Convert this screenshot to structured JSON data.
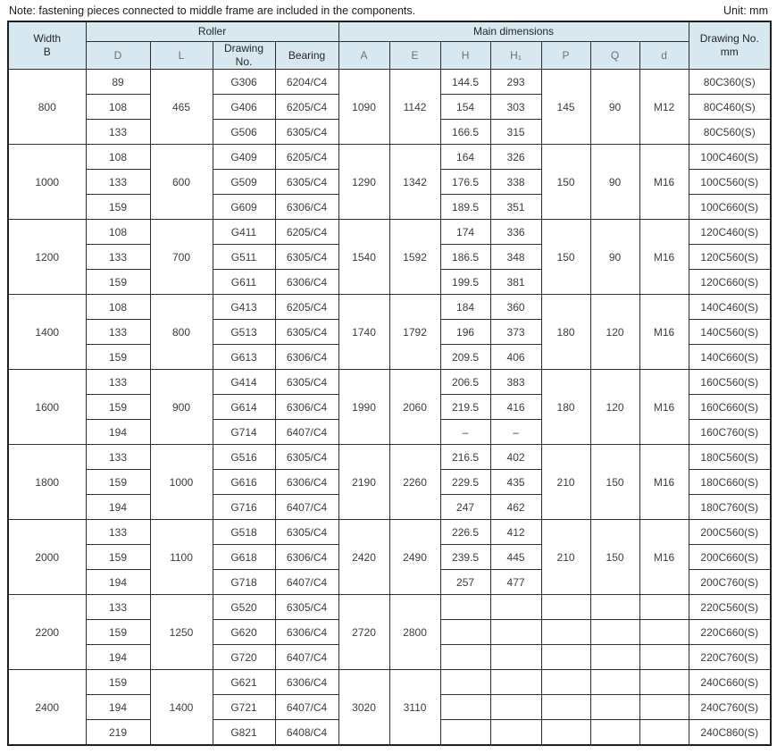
{
  "note": "Note: fastening pieces connected to middle frame are included in the components.",
  "unit_label": "Unit: mm",
  "colors": {
    "header_bg": "#d7e8f0",
    "border": "#2d2d2d",
    "text": "#3d3d3d"
  },
  "table": {
    "headers": {
      "width_b": "Width\nB",
      "roller": "Roller",
      "main_dimensions": "Main dimensions",
      "drawing_no_mm": "Drawing No.\nmm",
      "sub": {
        "d": "D",
        "l": "L",
        "drawing": "Drawing\nNo.",
        "bearing": "Bearing",
        "a": "A",
        "e": "E",
        "h": "H",
        "h1": "H₁",
        "p": "P",
        "q": "Q",
        "d_thread": "d"
      }
    },
    "groups": [
      {
        "b": "800",
        "l": "465",
        "a": "1090",
        "e": "1142",
        "p": "145",
        "q": "90",
        "d_thread": "M12",
        "pqd_merged": true,
        "rows": [
          {
            "d": "89",
            "drawing": "G306",
            "bearing": "6204/C4",
            "h": "144.5",
            "h1": "293",
            "drawing_mm": "80C360(S)"
          },
          {
            "d": "108",
            "drawing": "G406",
            "bearing": "6205/C4",
            "h": "154",
            "h1": "303",
            "drawing_mm": "80C460(S)"
          },
          {
            "d": "133",
            "drawing": "G506",
            "bearing": "6305/C4",
            "h": "166.5",
            "h1": "315",
            "drawing_mm": "80C560(S)"
          }
        ]
      },
      {
        "b": "1000",
        "l": "600",
        "a": "1290",
        "e": "1342",
        "p": "150",
        "q": "90",
        "d_thread": "M16",
        "pqd_merged": true,
        "rows": [
          {
            "d": "108",
            "drawing": "G409",
            "bearing": "6205/C4",
            "h": "164",
            "h1": "326",
            "drawing_mm": "100C460(S)"
          },
          {
            "d": "133",
            "drawing": "G509",
            "bearing": "6305/C4",
            "h": "176.5",
            "h1": "338",
            "drawing_mm": "100C560(S)"
          },
          {
            "d": "159",
            "drawing": "G609",
            "bearing": "6306/C4",
            "h": "189.5",
            "h1": "351",
            "drawing_mm": "100C660(S)"
          }
        ]
      },
      {
        "b": "1200",
        "l": "700",
        "a": "1540",
        "e": "1592",
        "p": "150",
        "q": "90",
        "d_thread": "M16",
        "pqd_merged": true,
        "rows": [
          {
            "d": "108",
            "drawing": "G411",
            "bearing": "6205/C4",
            "h": "174",
            "h1": "336",
            "drawing_mm": "120C460(S)"
          },
          {
            "d": "133",
            "drawing": "G511",
            "bearing": "6305/C4",
            "h": "186.5",
            "h1": "348",
            "drawing_mm": "120C560(S)"
          },
          {
            "d": "159",
            "drawing": "G611",
            "bearing": "6306/C4",
            "h": "199.5",
            "h1": "381",
            "drawing_mm": "120C660(S)"
          }
        ]
      },
      {
        "b": "1400",
        "l": "800",
        "a": "1740",
        "e": "1792",
        "p": "180",
        "q": "120",
        "d_thread": "M16",
        "pqd_merged": true,
        "rows": [
          {
            "d": "108",
            "drawing": "G413",
            "bearing": "6205/C4",
            "h": "184",
            "h1": "360",
            "drawing_mm": "140C460(S)"
          },
          {
            "d": "133",
            "drawing": "G513",
            "bearing": "6305/C4",
            "h": "196",
            "h1": "373",
            "drawing_mm": "140C560(S)"
          },
          {
            "d": "159",
            "drawing": "G613",
            "bearing": "6306/C4",
            "h": "209.5",
            "h1": "406",
            "drawing_mm": "140C660(S)"
          }
        ]
      },
      {
        "b": "1600",
        "l": "900",
        "a": "1990",
        "e": "2060",
        "p": "180",
        "q": "120",
        "d_thread": "M16",
        "pqd_merged": true,
        "rows": [
          {
            "d": "133",
            "drawing": "G414",
            "bearing": "6305/C4",
            "h": "206.5",
            "h1": "383",
            "drawing_mm": "160C560(S)"
          },
          {
            "d": "159",
            "drawing": "G614",
            "bearing": "6306/C4",
            "h": "219.5",
            "h1": "416",
            "drawing_mm": "160C660(S)"
          },
          {
            "d": "194",
            "drawing": "G714",
            "bearing": "6407/C4",
            "h": "–",
            "h1": "–",
            "drawing_mm": "160C760(S)"
          }
        ]
      },
      {
        "b": "1800",
        "l": "1000",
        "a": "2190",
        "e": "2260",
        "p": "210",
        "q": "150",
        "d_thread": "M16",
        "pqd_merged": true,
        "rows": [
          {
            "d": "133",
            "drawing": "G516",
            "bearing": "6305/C4",
            "h": "216.5",
            "h1": "402",
            "drawing_mm": "180C560(S)"
          },
          {
            "d": "159",
            "drawing": "G616",
            "bearing": "6306/C4",
            "h": "229.5",
            "h1": "435",
            "drawing_mm": "180C660(S)"
          },
          {
            "d": "194",
            "drawing": "G716",
            "bearing": "6407/C4",
            "h": "247",
            "h1": "462",
            "drawing_mm": "180C760(S)"
          }
        ]
      },
      {
        "b": "2000",
        "l": "1100",
        "a": "2420",
        "e": "2490",
        "p": "210",
        "q": "150",
        "d_thread": "M16",
        "pqd_merged": true,
        "rows": [
          {
            "d": "133",
            "drawing": "G518",
            "bearing": "6305/C4",
            "h": "226.5",
            "h1": "412",
            "drawing_mm": "200C560(S)"
          },
          {
            "d": "159",
            "drawing": "G618",
            "bearing": "6306/C4",
            "h": "239.5",
            "h1": "445",
            "drawing_mm": "200C660(S)"
          },
          {
            "d": "194",
            "drawing": "G718",
            "bearing": "6407/C4",
            "h": "257",
            "h1": "477",
            "drawing_mm": "200C760(S)"
          }
        ]
      },
      {
        "b": "2200",
        "l": "1250",
        "a": "2720",
        "e": "2800",
        "p": "",
        "q": "",
        "d_thread": "",
        "pqd_merged": false,
        "rows": [
          {
            "d": "133",
            "drawing": "G520",
            "bearing": "6305/C4",
            "h": "",
            "h1": "",
            "drawing_mm": "220C560(S)"
          },
          {
            "d": "159",
            "drawing": "G620",
            "bearing": "6306/C4",
            "h": "",
            "h1": "",
            "drawing_mm": "220C660(S)"
          },
          {
            "d": "194",
            "drawing": "G720",
            "bearing": "6407/C4",
            "h": "",
            "h1": "",
            "drawing_mm": "220C760(S)"
          }
        ]
      },
      {
        "b": "2400",
        "l": "1400",
        "a": "3020",
        "e": "3110",
        "p": "",
        "q": "",
        "d_thread": "",
        "pqd_merged": false,
        "rows": [
          {
            "d": "159",
            "drawing": "G621",
            "bearing": "6306/C4",
            "h": "",
            "h1": "",
            "drawing_mm": "240C660(S)"
          },
          {
            "d": "194",
            "drawing": "G721",
            "bearing": "6407/C4",
            "h": "",
            "h1": "",
            "drawing_mm": "240C760(S)"
          },
          {
            "d": "219",
            "drawing": "G821",
            "bearing": "6408/C4",
            "h": "",
            "h1": "",
            "drawing_mm": "240C860(S)"
          }
        ]
      }
    ]
  }
}
